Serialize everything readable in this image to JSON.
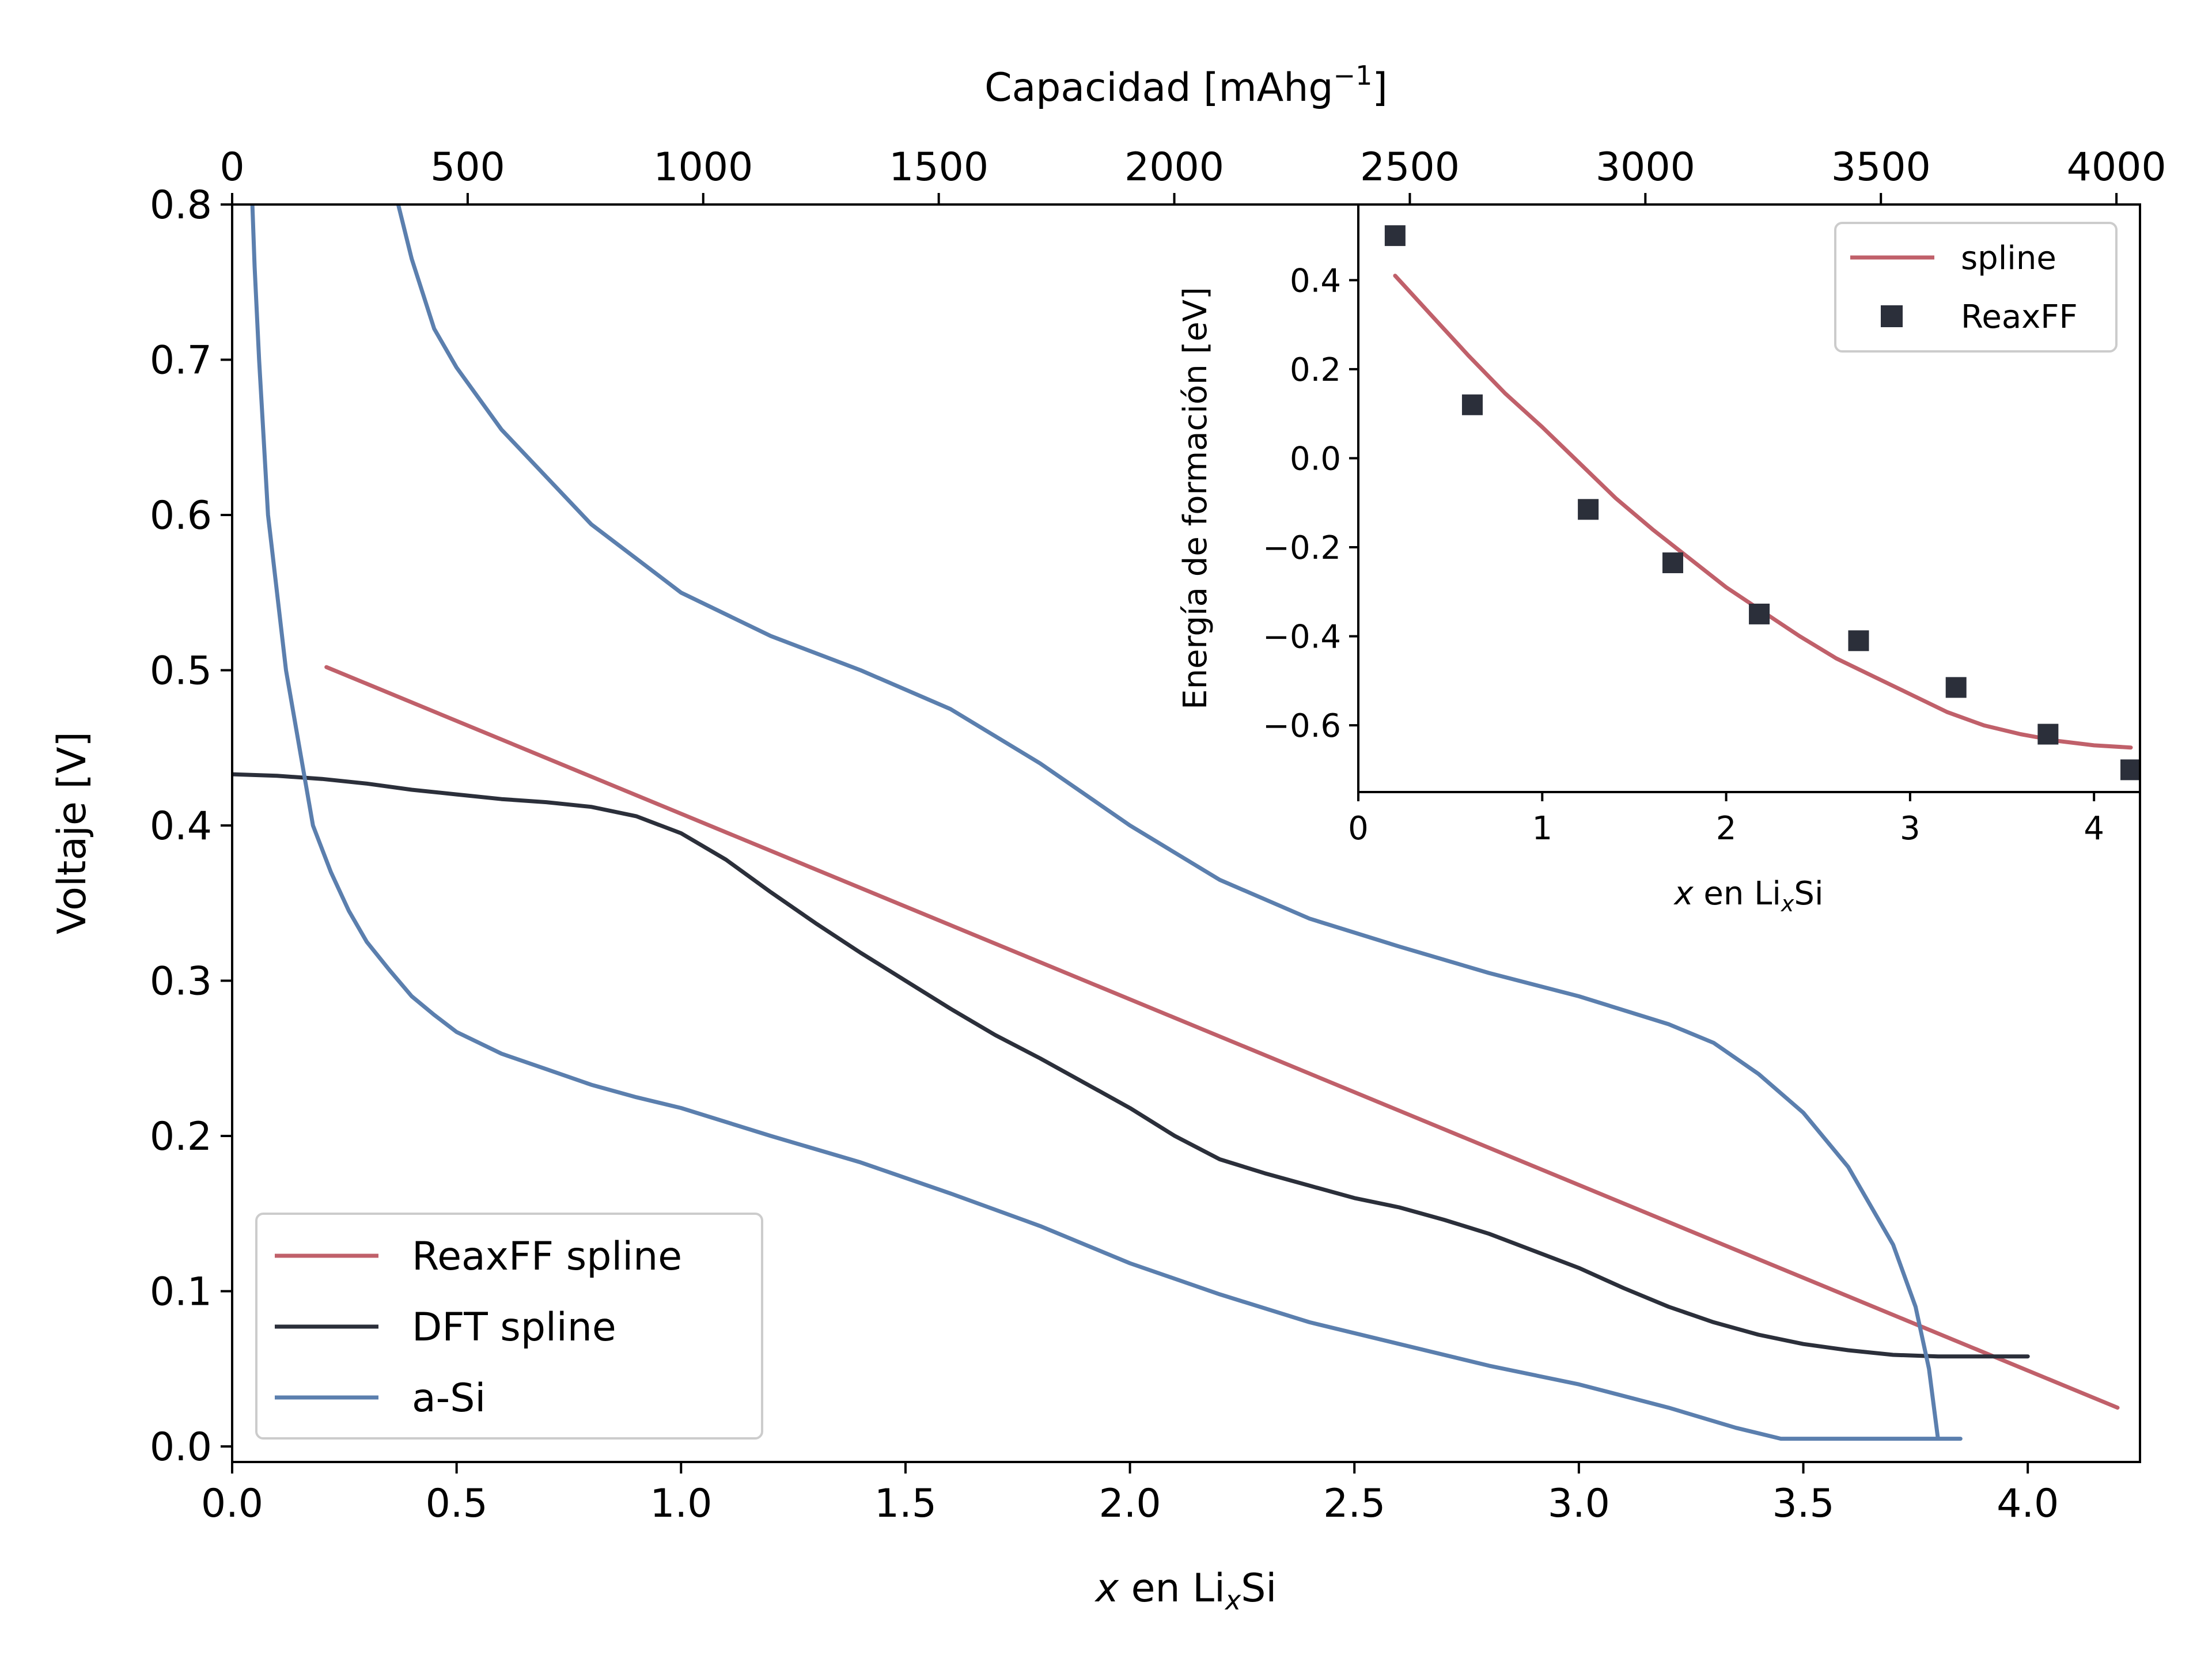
{
  "chart_data": [
    {
      "type": "line",
      "xlabel_var": "x",
      "xlabel_rest": " en Li",
      "xlabel_sub": "x",
      "xlabel_tail": "Si",
      "ylabel": "Voltaje [V]",
      "top_axis_label": "Capacidad [mAhg",
      "top_axis_sup": "−1",
      "top_axis_close": "]",
      "xlim": [
        0.0,
        4.25
      ],
      "ylim": [
        -0.01,
        0.8
      ],
      "x_ticks": [
        "0.0",
        "0.5",
        "1.0",
        "1.5",
        "2.0",
        "2.5",
        "3.0",
        "3.5",
        "4.0"
      ],
      "y_ticks": [
        "0.0",
        "0.1",
        "0.2",
        "0.3",
        "0.4",
        "0.5",
        "0.6",
        "0.7",
        "0.8"
      ],
      "top_ticks": [
        "0",
        "500",
        "1000",
        "1500",
        "2000",
        "2500",
        "3000",
        "3500",
        "4000"
      ],
      "top_tick_values": [
        0,
        500,
        1000,
        1500,
        2000,
        2500,
        3000,
        3500,
        4000
      ],
      "top_xlim": [
        0,
        4050
      ],
      "legend_position": "lower-left",
      "series": [
        {
          "name": "ReaxFF spline",
          "color": "#c0606a",
          "x": [
            0.21,
            4.2
          ],
          "y": [
            0.502,
            0.025
          ]
        },
        {
          "name": "DFT spline",
          "color": "#2b2f3a",
          "x": [
            0.0,
            0.1,
            0.2,
            0.3,
            0.4,
            0.5,
            0.6,
            0.7,
            0.8,
            0.9,
            1.0,
            1.1,
            1.2,
            1.3,
            1.4,
            1.5,
            1.6,
            1.7,
            1.8,
            1.9,
            2.0,
            2.1,
            2.2,
            2.3,
            2.4,
            2.5,
            2.6,
            2.7,
            2.8,
            2.9,
            3.0,
            3.1,
            3.2,
            3.3,
            3.4,
            3.5,
            3.6,
            3.7,
            3.8,
            3.9,
            4.0
          ],
          "y": [
            0.433,
            0.432,
            0.43,
            0.427,
            0.423,
            0.42,
            0.417,
            0.415,
            0.412,
            0.406,
            0.395,
            0.378,
            0.357,
            0.337,
            0.318,
            0.3,
            0.282,
            0.265,
            0.25,
            0.234,
            0.218,
            0.2,
            0.185,
            0.176,
            0.168,
            0.16,
            0.154,
            0.146,
            0.137,
            0.126,
            0.115,
            0.102,
            0.09,
            0.08,
            0.072,
            0.066,
            0.062,
            0.059,
            0.058,
            0.058,
            0.058
          ]
        },
        {
          "name": "a-Si",
          "color": "#5b7fae",
          "x": [
            0.045,
            0.05,
            0.06,
            0.07,
            0.08,
            0.1,
            0.12,
            0.15,
            0.18,
            0.22,
            0.26,
            0.3,
            0.35,
            0.4,
            0.45,
            0.5,
            0.6,
            0.7,
            0.8,
            0.9,
            1.0,
            1.2,
            1.4,
            1.6,
            1.8,
            2.0,
            2.2,
            2.4,
            2.6,
            2.8,
            3.0,
            3.2,
            3.35,
            3.45,
            3.5,
            3.6,
            3.7,
            3.78,
            3.85,
            3.8,
            3.78,
            3.75,
            3.7,
            3.6,
            3.5,
            3.4,
            3.3,
            3.2,
            3.0,
            2.8,
            2.6,
            2.4,
            2.2,
            2.0,
            1.8,
            1.6,
            1.4,
            1.2,
            1.0,
            0.8,
            0.6,
            0.5,
            0.45,
            0.4,
            0.37
          ],
          "y": [
            0.8,
            0.76,
            0.7,
            0.65,
            0.6,
            0.55,
            0.5,
            0.45,
            0.4,
            0.37,
            0.345,
            0.325,
            0.307,
            0.29,
            0.278,
            0.267,
            0.253,
            0.243,
            0.233,
            0.225,
            0.218,
            0.2,
            0.183,
            0.163,
            0.142,
            0.118,
            0.098,
            0.08,
            0.066,
            0.052,
            0.04,
            0.025,
            0.012,
            0.005,
            0.005,
            0.005,
            0.005,
            0.005,
            0.005,
            0.005,
            0.05,
            0.09,
            0.13,
            0.18,
            0.215,
            0.24,
            0.26,
            0.272,
            0.29,
            0.305,
            0.322,
            0.34,
            0.365,
            0.4,
            0.44,
            0.475,
            0.5,
            0.522,
            0.55,
            0.594,
            0.655,
            0.695,
            0.72,
            0.765,
            0.8
          ]
        }
      ]
    },
    {
      "type": "scatter",
      "xlabel_var": "x",
      "xlabel_rest": " en Li",
      "xlabel_sub": "x",
      "xlabel_tail": "Si",
      "ylabel": "Energía de formación [eV]",
      "xlim": [
        0,
        4.25
      ],
      "ylim": [
        -0.75,
        0.57
      ],
      "x_ticks": [
        "0",
        "1",
        "2",
        "3",
        "4"
      ],
      "x_tick_values": [
        0,
        1,
        2,
        3,
        4
      ],
      "y_ticks": [
        "0.4",
        "0.2",
        "0.0",
        "−0.2",
        "−0.4",
        "−0.6"
      ],
      "y_tick_values": [
        0.4,
        0.2,
        0.0,
        -0.2,
        -0.4,
        -0.6
      ],
      "legend_position": "top-right",
      "series": [
        {
          "name": "spline",
          "type": "line",
          "color": "#c0606a",
          "x": [
            0.2,
            0.4,
            0.6,
            0.8,
            1.0,
            1.2,
            1.4,
            1.6,
            1.8,
            2.0,
            2.2,
            2.4,
            2.6,
            2.8,
            3.0,
            3.2,
            3.4,
            3.6,
            3.8,
            4.0,
            4.2
          ],
          "y": [
            0.41,
            0.32,
            0.23,
            0.145,
            0.07,
            -0.01,
            -0.09,
            -0.16,
            -0.225,
            -0.29,
            -0.345,
            -0.4,
            -0.45,
            -0.49,
            -0.53,
            -0.57,
            -0.6,
            -0.62,
            -0.635,
            -0.645,
            -0.65
          ]
        },
        {
          "name": "ReaxFF",
          "type": "scatter",
          "color": "#2b2f3a",
          "x": [
            0.2,
            0.62,
            1.25,
            1.71,
            2.18,
            2.72,
            3.25,
            3.75,
            4.2
          ],
          "y": [
            0.5,
            0.12,
            -0.115,
            -0.235,
            -0.35,
            -0.41,
            -0.515,
            -0.62,
            -0.7
          ]
        }
      ]
    }
  ]
}
